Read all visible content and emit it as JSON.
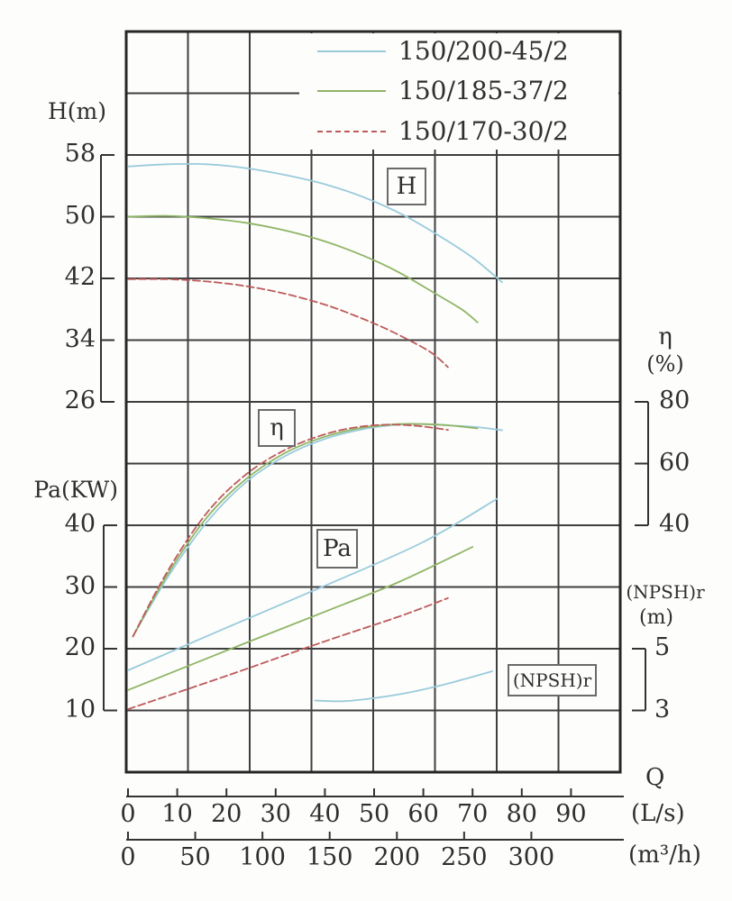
{
  "chart_data": {
    "type": "line",
    "title": "",
    "grid": true,
    "legend": {
      "position": "top-right",
      "entries": [
        {
          "label": "150/200-45/2",
          "color": "#9acbdb",
          "style": "solid"
        },
        {
          "label": "150/185-37/2",
          "color": "#8fb565",
          "style": "solid"
        },
        {
          "label": "150/170-30/2",
          "color": "#bd5a5a",
          "style": "dashed"
        }
      ]
    },
    "axes": {
      "h": {
        "label": "H(m)",
        "ticks": [
          58,
          50,
          42,
          34,
          26
        ]
      },
      "pa": {
        "label": "Pa(KW)",
        "ticks": [
          40,
          30,
          20,
          10
        ]
      },
      "eta": {
        "label": "η",
        "unit": "(%)",
        "ticks": [
          80,
          60,
          40
        ]
      },
      "npsh": {
        "label": "(NPSH)r",
        "unit": "(m)",
        "ticks": [
          5,
          3
        ]
      },
      "q_ls": {
        "label": "Q",
        "unit": "(L/s)",
        "ticks": [
          0,
          10,
          20,
          30,
          40,
          50,
          60,
          70,
          80,
          90
        ]
      },
      "q_m3h": {
        "unit": "(m³/h)",
        "ticks": [
          0,
          50,
          100,
          150,
          200,
          250,
          300
        ]
      }
    },
    "curve_labels": {
      "h": "H",
      "eta": "η",
      "pa": "Pa",
      "npsh": "(NPSH)r"
    },
    "series": {
      "H": [
        {
          "pump": "150/200-45/2",
          "color": "#9acbdb",
          "style": "solid",
          "points": [
            [
              0,
              56.5
            ],
            [
              8,
              56.8
            ],
            [
              16,
              56.8
            ],
            [
              24,
              56.3
            ],
            [
              32,
              55.4
            ],
            [
              40,
              54.2
            ],
            [
              48,
              52.5
            ],
            [
              56,
              50.2
            ],
            [
              63,
              47.6
            ],
            [
              70,
              44.7
            ],
            [
              76,
              41.5
            ]
          ]
        },
        {
          "pump": "150/185-37/2",
          "color": "#8fb565",
          "style": "solid",
          "points": [
            [
              0,
              50
            ],
            [
              8,
              50.1
            ],
            [
              16,
              49.8
            ],
            [
              24,
              49.2
            ],
            [
              32,
              48.2
            ],
            [
              40,
              46.8
            ],
            [
              48,
              44.9
            ],
            [
              55,
              42.8
            ],
            [
              62,
              40.2
            ],
            [
              68,
              37.9
            ],
            [
              71,
              36.3
            ]
          ]
        },
        {
          "pump": "150/170-30/2",
          "color": "#bd5a5a",
          "style": "dashed",
          "points": [
            [
              0,
              41.9
            ],
            [
              8,
              41.9
            ],
            [
              16,
              41.6
            ],
            [
              24,
              41
            ],
            [
              32,
              40
            ],
            [
              40,
              38.6
            ],
            [
              46,
              37.2
            ],
            [
              52,
              35.6
            ],
            [
              58,
              33.7
            ],
            [
              62,
              32.2
            ],
            [
              65,
              30.5
            ]
          ]
        }
      ],
      "eta": [
        {
          "pump": "150/200-45/2",
          "color": "#9acbdb",
          "style": "solid",
          "points": [
            [
              1,
              4
            ],
            [
              8,
              23
            ],
            [
              16,
              41
            ],
            [
              24,
              54
            ],
            [
              32,
              62.5
            ],
            [
              40,
              68
            ],
            [
              48,
              71.2
            ],
            [
              55,
              72.6
            ],
            [
              60,
              72.8
            ],
            [
              66,
              72.3
            ],
            [
              71,
              71.8
            ],
            [
              76,
              70.8
            ]
          ]
        },
        {
          "pump": "150/185-37/2",
          "color": "#8fb565",
          "style": "solid",
          "points": [
            [
              1,
              4
            ],
            [
              8,
              24
            ],
            [
              16,
              42.5
            ],
            [
              24,
              55
            ],
            [
              32,
              63.5
            ],
            [
              40,
              68.7
            ],
            [
              48,
              71.7
            ],
            [
              55,
              72.8
            ],
            [
              60,
              72.8
            ],
            [
              65,
              72.4
            ],
            [
              71,
              71.4
            ]
          ]
        },
        {
          "pump": "150/170-30/2",
          "color": "#bd5a5a",
          "style": "dashed",
          "points": [
            [
              1,
              4
            ],
            [
              8,
              25
            ],
            [
              16,
              44
            ],
            [
              24,
              56.5
            ],
            [
              32,
              64.5
            ],
            [
              40,
              69.5
            ],
            [
              47,
              71.9
            ],
            [
              53,
              72.6
            ],
            [
              58,
              72.3
            ],
            [
              62,
              71.6
            ],
            [
              65,
              70.9
            ]
          ]
        }
      ],
      "Pa": [
        {
          "pump": "150/200-45/2",
          "color": "#9acbdb",
          "style": "solid",
          "points": [
            [
              0,
              16.5
            ],
            [
              20,
              23.4
            ],
            [
              40,
              30.2
            ],
            [
              60,
              37.3
            ],
            [
              75,
              44.3
            ]
          ]
        },
        {
          "pump": "150/185-37/2",
          "color": "#8fb565",
          "style": "solid",
          "points": [
            [
              0,
              13.3
            ],
            [
              20,
              19.7
            ],
            [
              40,
              26
            ],
            [
              55,
              30.8
            ],
            [
              70,
              36.5
            ]
          ]
        },
        {
          "pump": "150/170-30/2",
          "color": "#bd5a5a",
          "style": "dashed",
          "points": [
            [
              0,
              10.2
            ],
            [
              20,
              15.6
            ],
            [
              40,
              21.2
            ],
            [
              55,
              25.2
            ],
            [
              65,
              28.2
            ]
          ]
        }
      ],
      "NPSHr": [
        {
          "pump": "150/200-45/2",
          "color": "#9acbdb",
          "style": "solid",
          "points": [
            [
              38,
              3.32
            ],
            [
              44,
              3.3
            ],
            [
              50,
              3.4
            ],
            [
              56,
              3.55
            ],
            [
              62,
              3.75
            ],
            [
              68,
              4.0
            ],
            [
              74,
              4.27
            ]
          ]
        }
      ]
    },
    "axis_ranges": {
      "h_axis_m": [
        26,
        58
      ],
      "pa_axis_kw": [
        10,
        40
      ],
      "eta_axis_pct": [
        40,
        80
      ],
      "npsh_axis_m": [
        3,
        5
      ],
      "q_ls": [
        0,
        90
      ],
      "q_m3h": [
        0,
        300
      ]
    }
  }
}
